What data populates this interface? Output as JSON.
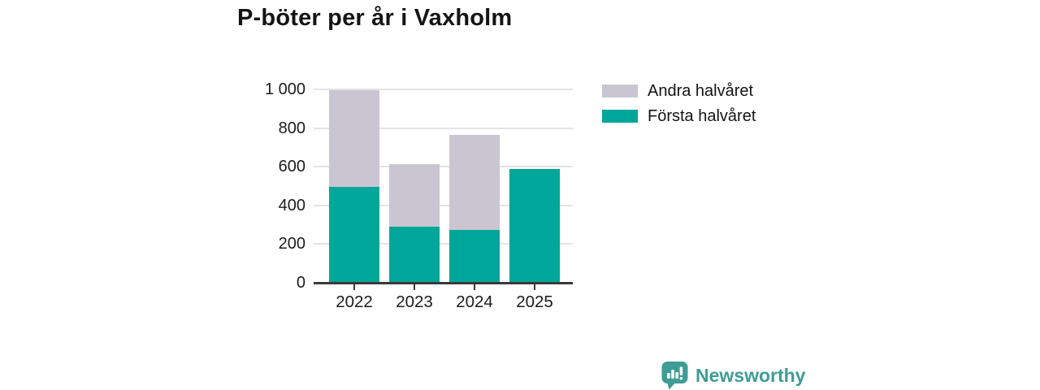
{
  "title": "P-böter per år i Vaxholm",
  "legend": {
    "position": "top-right",
    "entries": [
      {
        "label": "Andra halvåret",
        "color": "#c9c6d1"
      },
      {
        "label": "Första halvåret",
        "color": "#00a69a"
      }
    ]
  },
  "branding": {
    "name": "Newsworthy",
    "color": "#3e9c95",
    "icon": "newsworthy-bar-chart-speech-bubble-icon"
  },
  "chart_data": {
    "type": "bar",
    "stacked": true,
    "title": "P-böter per år i Vaxholm",
    "categories": [
      "2022",
      "2023",
      "2024",
      "2025"
    ],
    "series": [
      {
        "name": "Första halvåret",
        "color": "#00a69a",
        "values": [
          490,
          285,
          270,
          585
        ]
      },
      {
        "name": "Andra halvåret",
        "color": "#c9c6d1",
        "values": [
          500,
          325,
          490,
          0
        ]
      }
    ],
    "totals": [
      990,
      610,
      760,
      585
    ],
    "xlabel": "",
    "ylabel": "",
    "ylim": [
      0,
      1000
    ],
    "yticks": [
      0,
      200,
      400,
      600,
      800,
      1000
    ],
    "ytick_labels": [
      "0",
      "200",
      "400",
      "600",
      "800",
      "1 000"
    ],
    "grid": true,
    "axis_color": "#3a3a3a",
    "gridline_color": "#e4e3e6",
    "legend_position": "top-right"
  }
}
